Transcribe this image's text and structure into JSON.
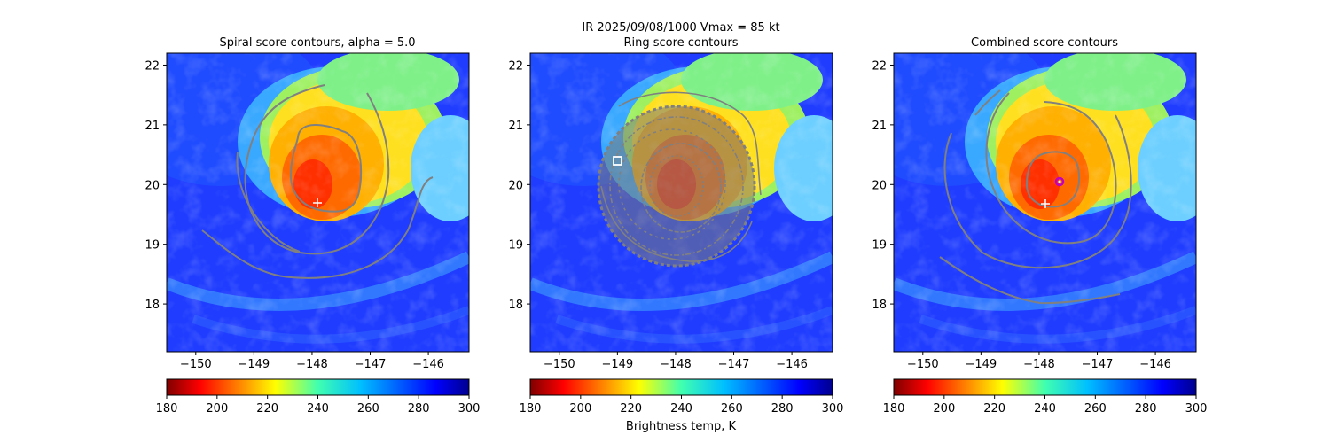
{
  "figure": {
    "suptitle_line1": "IR  2025/09/08/1000    Vmax = 85 kt",
    "colorbar_label": "Brightness temp, K"
  },
  "chart_data": [
    {
      "type": "heatmap",
      "title": "Spiral score contours, alpha =  5.0",
      "field": "IR brightness temperature (K)",
      "xlabel": "",
      "ylabel": "",
      "xlim": [
        -150.5,
        -145.3
      ],
      "ylim": [
        17.2,
        22.2
      ],
      "xticks": [
        -150,
        -149,
        -148,
        -147,
        -146
      ],
      "yticks": [
        18,
        19,
        20,
        21,
        22
      ],
      "contour_color": "#808080",
      "storm_center": {
        "lon": -147.8,
        "lat": 19.7
      },
      "colorbar": {
        "vmin": 180,
        "vmax": 300,
        "ticks": [
          180,
          200,
          220,
          240,
          260,
          280,
          300
        ],
        "cmap": "jet_r"
      }
    },
    {
      "type": "heatmap",
      "title": "Ring score contours",
      "field": "IR brightness temperature (K)",
      "xlabel": "",
      "ylabel": "",
      "xlim": [
        -150.5,
        -145.3
      ],
      "ylim": [
        17.2,
        22.2
      ],
      "xticks": [
        -150,
        -149,
        -148,
        -147,
        -146
      ],
      "yticks": [
        18,
        19,
        20,
        21,
        22
      ],
      "contour_color": "#808080",
      "ring_marker": {
        "lon": -148.95,
        "lat": 20.4
      },
      "colorbar": {
        "vmin": 180,
        "vmax": 300,
        "ticks": [
          180,
          200,
          220,
          240,
          260,
          280,
          300
        ],
        "cmap": "jet_r"
      }
    },
    {
      "type": "heatmap",
      "title": "Combined score contours",
      "field": "IR brightness temperature (K)",
      "xlabel": "",
      "ylabel": "",
      "xlim": [
        -150.5,
        -145.3
      ],
      "ylim": [
        17.2,
        22.2
      ],
      "xticks": [
        -150,
        -149,
        -148,
        -147,
        -146
      ],
      "yticks": [
        18,
        19,
        20,
        21,
        22
      ],
      "contour_color": "#808080",
      "storm_center": {
        "lon": -147.8,
        "lat": 19.7
      },
      "best_center": {
        "lon": -147.55,
        "lat": 20.05
      },
      "colorbar": {
        "vmin": 180,
        "vmax": 300,
        "ticks": [
          180,
          200,
          220,
          240,
          260,
          280,
          300
        ],
        "cmap": "jet_r"
      }
    }
  ]
}
